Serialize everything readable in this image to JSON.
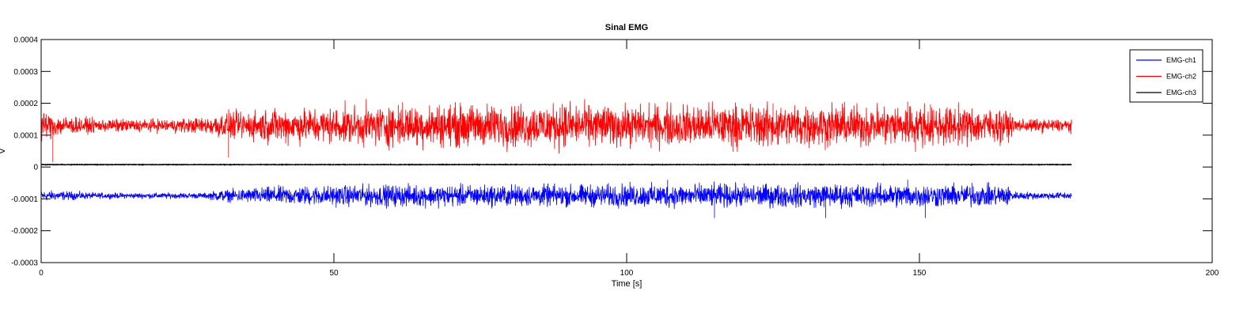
{
  "chart_data": {
    "type": "line",
    "title": "Sinal EMG",
    "xlabel": "Time [s]",
    "ylabel": "V",
    "xlim": [
      0,
      200
    ],
    "ylim": [
      -0.0003,
      0.0004
    ],
    "xticks": [
      0,
      50,
      100,
      150,
      200
    ],
    "xtick_labels": [
      "0",
      "50",
      "100",
      "150",
      "200"
    ],
    "yticks": [
      -0.0003,
      -0.0002,
      -0.0001,
      0,
      0.0001,
      0.0002,
      0.0003,
      0.0004
    ],
    "ytick_labels": [
      "-0.0003",
      "-0.0002",
      "-0.0001",
      "0",
      "0.0001",
      "0.0002",
      "0.0003",
      "0.0004"
    ],
    "grid": false,
    "legend_position": "top-right",
    "x_end": 176,
    "series": [
      {
        "name": "EMG-ch1",
        "color": "#0000ff",
        "baseline": -9e-05,
        "envelope_t": [
          0,
          5,
          10,
          20,
          28,
          30,
          35,
          40,
          50,
          60,
          70,
          80,
          90,
          100,
          110,
          120,
          130,
          140,
          150,
          160,
          165,
          166,
          170,
          176
        ],
        "envelope_amp": [
          1.5e-05,
          1.2e-05,
          8e-06,
          8e-06,
          8e-06,
          1.5e-05,
          2e-05,
          2.5e-05,
          2.8e-05,
          3e-05,
          3e-05,
          3e-05,
          3e-05,
          3.2e-05,
          3.2e-05,
          3.2e-05,
          3.2e-05,
          3.2e-05,
          3.2e-05,
          3e-05,
          3e-05,
          1.2e-05,
          1e-05,
          1e-05
        ],
        "spikes": [
          [
            115,
            -0.00016
          ],
          [
            134,
            -0.00016
          ],
          [
            151,
            -0.00016
          ],
          [
            107,
            -4e-05
          ],
          [
            148,
            -4e-05
          ],
          [
            159,
            -5e-05
          ]
        ]
      },
      {
        "name": "EMG-ch2",
        "color": "#ff0000",
        "baseline": 0.00013,
        "envelope_t": [
          0,
          5,
          10,
          20,
          28,
          30,
          35,
          40,
          50,
          60,
          70,
          80,
          90,
          100,
          110,
          120,
          130,
          140,
          150,
          160,
          165,
          166,
          170,
          176
        ],
        "envelope_amp": [
          4e-05,
          2.5e-05,
          1.8e-05,
          1.8e-05,
          2.2e-05,
          3.5e-05,
          4e-05,
          4.8e-05,
          5e-05,
          5.8e-05,
          5.8e-05,
          6e-05,
          6e-05,
          5.5e-05,
          5.8e-05,
          6e-05,
          6e-05,
          5.5e-05,
          6e-05,
          5e-05,
          4.5e-05,
          2e-05,
          1.8e-05,
          1.8e-05
        ],
        "spikes": [
          [
            2,
            1.5e-05
          ],
          [
            32,
            3e-05
          ],
          [
            148,
            0.000205
          ],
          [
            125,
            0.0002
          ],
          [
            61,
            0.000195
          ],
          [
            68,
            0.000195
          ],
          [
            89,
            0.000198
          ]
        ]
      },
      {
        "name": "EMG-ch3",
        "color": "#000000",
        "baseline": 7.5e-06,
        "envelope_t": [
          0,
          176
        ],
        "envelope_amp": [
          8e-07,
          8e-07
        ],
        "spikes": []
      }
    ]
  }
}
